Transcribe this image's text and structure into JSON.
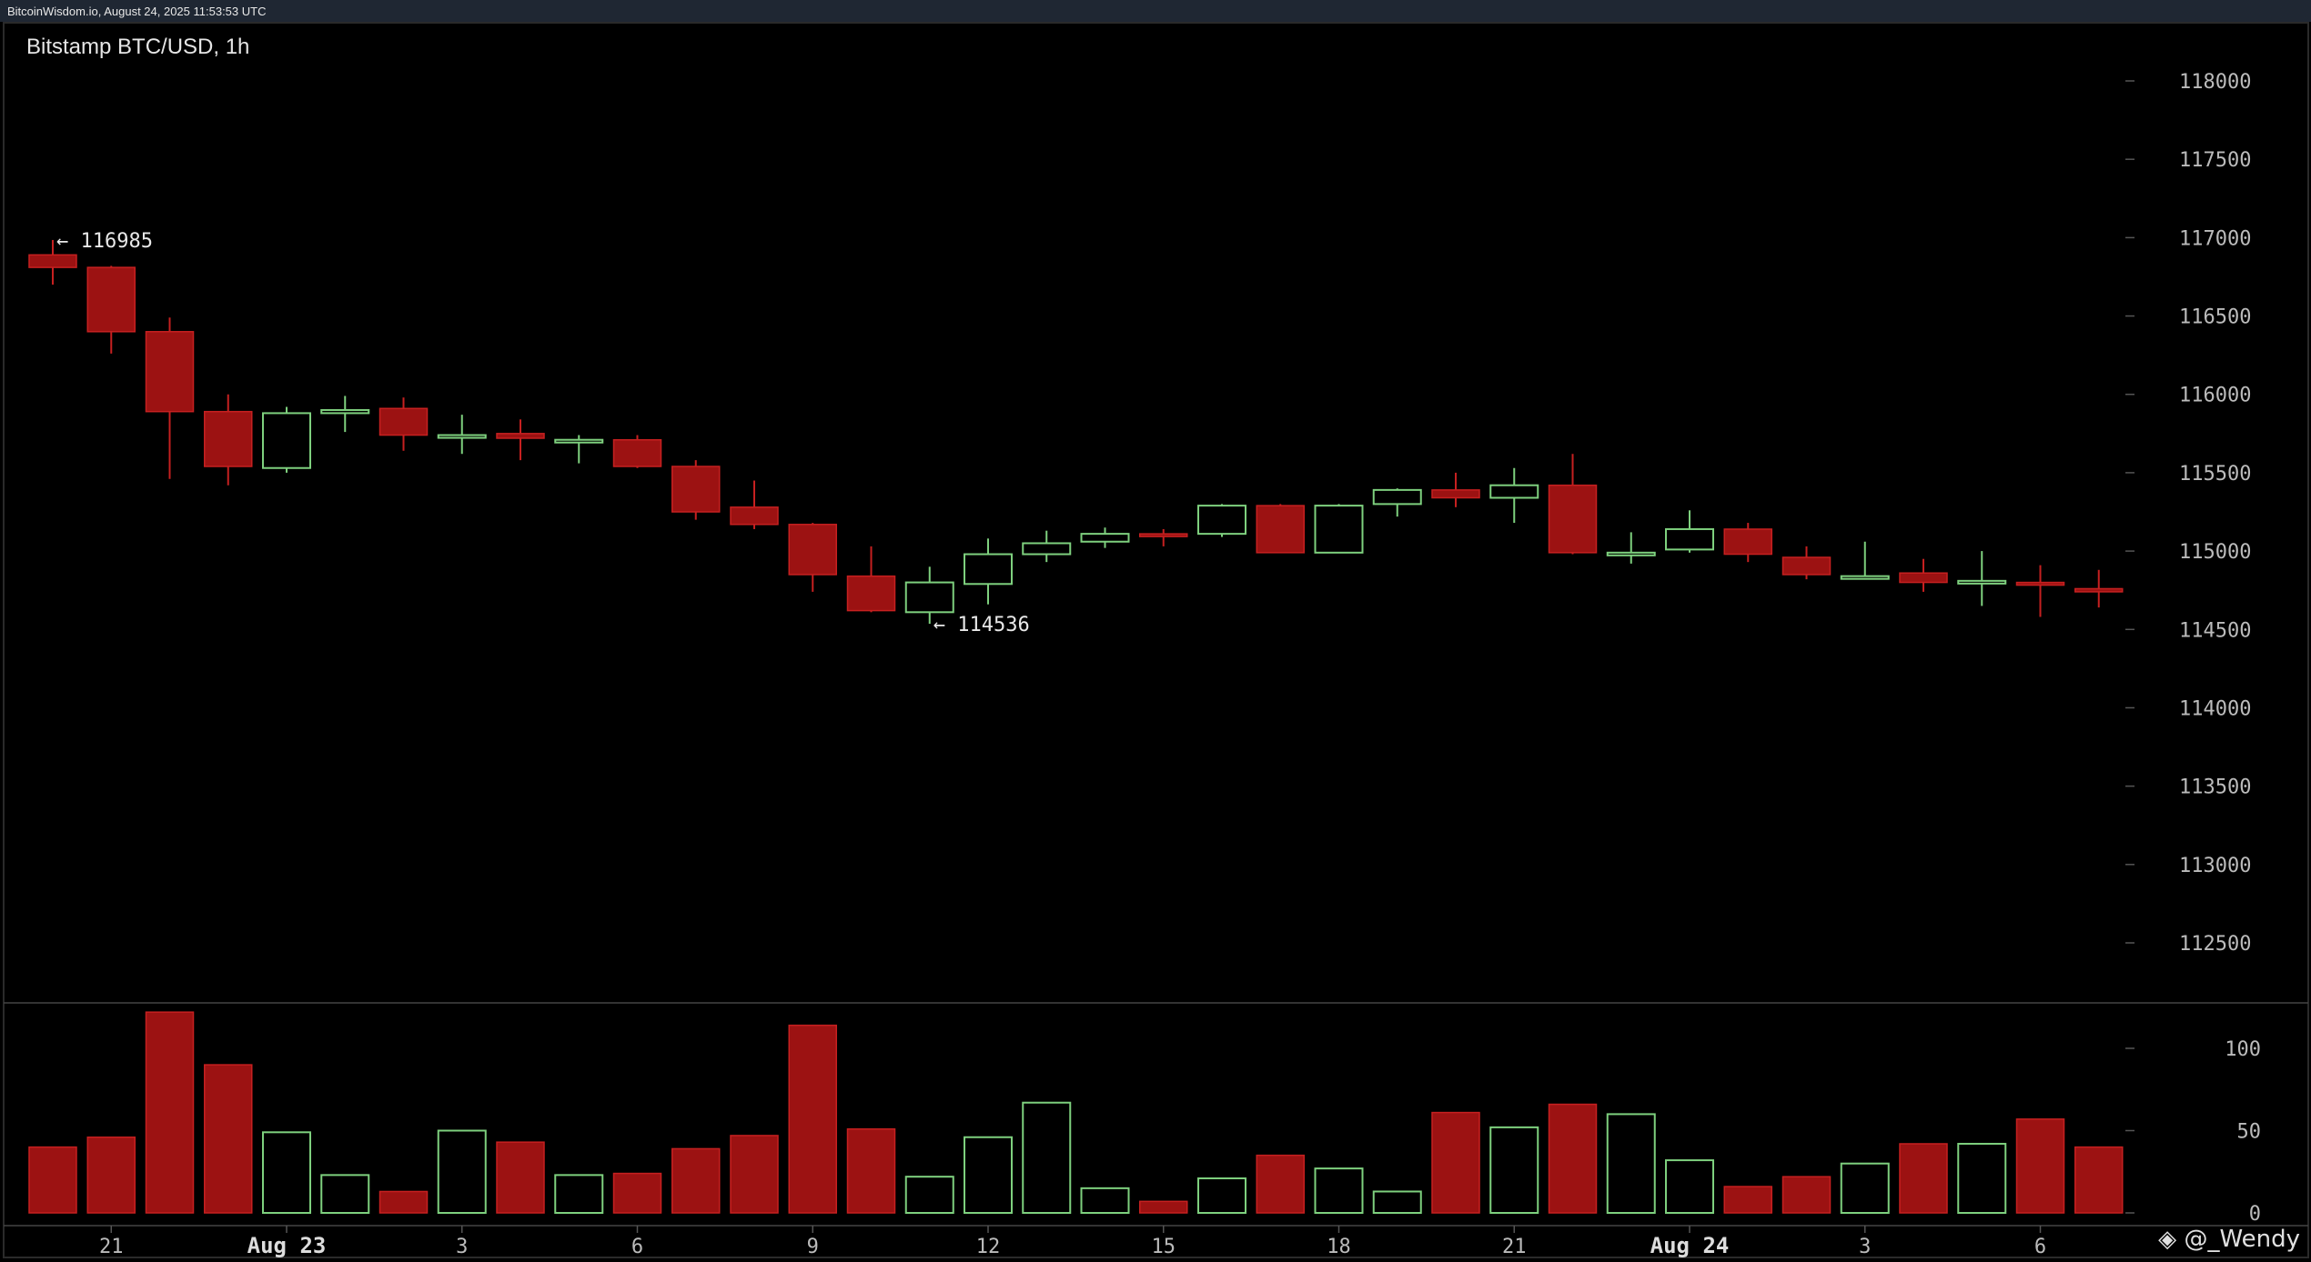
{
  "header": {
    "source_line": "BitcoinWisdom.io, August 24, 2025 11:53:53 UTC"
  },
  "watermark": {
    "text": "@_Wendy"
  },
  "chart_data": {
    "type": "candlestick",
    "title": "Bitstamp BTC/USD, 1h",
    "ylim": [
      112000,
      118500
    ],
    "y_ticks": [
      118000,
      117500,
      117000,
      116500,
      116000,
      115500,
      115000,
      114500,
      114000,
      113500,
      113000,
      112500
    ],
    "volume_ticks": [
      100,
      50,
      0
    ],
    "volume_ylim": [
      0,
      130
    ],
    "x_labels": [
      {
        "index": 1,
        "label": "21",
        "bold": false
      },
      {
        "index": 4,
        "label": "Aug 23",
        "bold": true
      },
      {
        "index": 7,
        "label": "3",
        "bold": false
      },
      {
        "index": 10,
        "label": "6",
        "bold": false
      },
      {
        "index": 13,
        "label": "9",
        "bold": false
      },
      {
        "index": 16,
        "label": "12",
        "bold": false
      },
      {
        "index": 19,
        "label": "15",
        "bold": false
      },
      {
        "index": 22,
        "label": "18",
        "bold": false
      },
      {
        "index": 25,
        "label": "21",
        "bold": false
      },
      {
        "index": 28,
        "label": "Aug 24",
        "bold": true
      },
      {
        "index": 31,
        "label": "3",
        "bold": false
      },
      {
        "index": 34,
        "label": "6",
        "bold": false
      }
    ],
    "annotations": [
      {
        "index": 0,
        "value": 116985,
        "text": "← 116985"
      },
      {
        "index": 15,
        "value": 114536,
        "text": "← 114536"
      }
    ],
    "colors": {
      "up": "#7ed07e",
      "down": "#9c1212",
      "down_edge": "#c62020",
      "grid": "#555555",
      "text": "#bbbbbb"
    },
    "candles": [
      {
        "o": 116890,
        "h": 116985,
        "l": 116700,
        "c": 116810,
        "v": 40
      },
      {
        "o": 116810,
        "h": 116820,
        "l": 116260,
        "c": 116400,
        "v": 46
      },
      {
        "o": 116400,
        "h": 116490,
        "l": 115460,
        "c": 115890,
        "v": 122
      },
      {
        "o": 115890,
        "h": 116000,
        "l": 115420,
        "c": 115540,
        "v": 90
      },
      {
        "o": 115530,
        "h": 115920,
        "l": 115500,
        "c": 115880,
        "v": 49
      },
      {
        "o": 115880,
        "h": 115990,
        "l": 115760,
        "c": 115900,
        "v": 23
      },
      {
        "o": 115910,
        "h": 115980,
        "l": 115640,
        "c": 115740,
        "v": 13
      },
      {
        "o": 115730,
        "h": 115870,
        "l": 115620,
        "c": 115740,
        "v": 50
      },
      {
        "o": 115750,
        "h": 115840,
        "l": 115580,
        "c": 115720,
        "v": 43
      },
      {
        "o": 115700,
        "h": 115740,
        "l": 115560,
        "c": 115710,
        "v": 23
      },
      {
        "o": 115710,
        "h": 115740,
        "l": 115530,
        "c": 115540,
        "v": 24
      },
      {
        "o": 115540,
        "h": 115580,
        "l": 115200,
        "c": 115250,
        "v": 39
      },
      {
        "o": 115280,
        "h": 115450,
        "l": 115140,
        "c": 115170,
        "v": 47
      },
      {
        "o": 115170,
        "h": 115180,
        "l": 114740,
        "c": 114850,
        "v": 114
      },
      {
        "o": 114840,
        "h": 115030,
        "l": 114610,
        "c": 114620,
        "v": 51
      },
      {
        "o": 114610,
        "h": 114900,
        "l": 114536,
        "c": 114800,
        "v": 22
      },
      {
        "o": 114790,
        "h": 115080,
        "l": 114660,
        "c": 114980,
        "v": 46
      },
      {
        "o": 114980,
        "h": 115130,
        "l": 114930,
        "c": 115050,
        "v": 67
      },
      {
        "o": 115060,
        "h": 115150,
        "l": 115020,
        "c": 115110,
        "v": 15
      },
      {
        "o": 115110,
        "h": 115140,
        "l": 115030,
        "c": 115100,
        "v": 7
      },
      {
        "o": 115110,
        "h": 115300,
        "l": 115090,
        "c": 115290,
        "v": 21
      },
      {
        "o": 115290,
        "h": 115300,
        "l": 114990,
        "c": 114990,
        "v": 35
      },
      {
        "o": 114990,
        "h": 115300,
        "l": 114990,
        "c": 115290,
        "v": 27
      },
      {
        "o": 115300,
        "h": 115400,
        "l": 115220,
        "c": 115390,
        "v": 13
      },
      {
        "o": 115390,
        "h": 115500,
        "l": 115280,
        "c": 115340,
        "v": 61
      },
      {
        "o": 115340,
        "h": 115530,
        "l": 115180,
        "c": 115420,
        "v": 52
      },
      {
        "o": 115420,
        "h": 115620,
        "l": 114980,
        "c": 114990,
        "v": 66
      },
      {
        "o": 114980,
        "h": 115120,
        "l": 114920,
        "c": 114990,
        "v": 60
      },
      {
        "o": 115010,
        "h": 115260,
        "l": 114990,
        "c": 115140,
        "v": 32
      },
      {
        "o": 115140,
        "h": 115180,
        "l": 114930,
        "c": 114980,
        "v": 16
      },
      {
        "o": 114960,
        "h": 115030,
        "l": 114820,
        "c": 114850,
        "v": 22
      },
      {
        "o": 114840,
        "h": 115060,
        "l": 114830,
        "c": 114840,
        "v": 30
      },
      {
        "o": 114860,
        "h": 114950,
        "l": 114740,
        "c": 114800,
        "v": 42
      },
      {
        "o": 114800,
        "h": 115000,
        "l": 114650,
        "c": 114810,
        "v": 42
      },
      {
        "o": 114800,
        "h": 114910,
        "l": 114580,
        "c": 114790,
        "v": 57
      },
      {
        "o": 114760,
        "h": 114880,
        "l": 114640,
        "c": 114740,
        "v": 40
      }
    ]
  }
}
